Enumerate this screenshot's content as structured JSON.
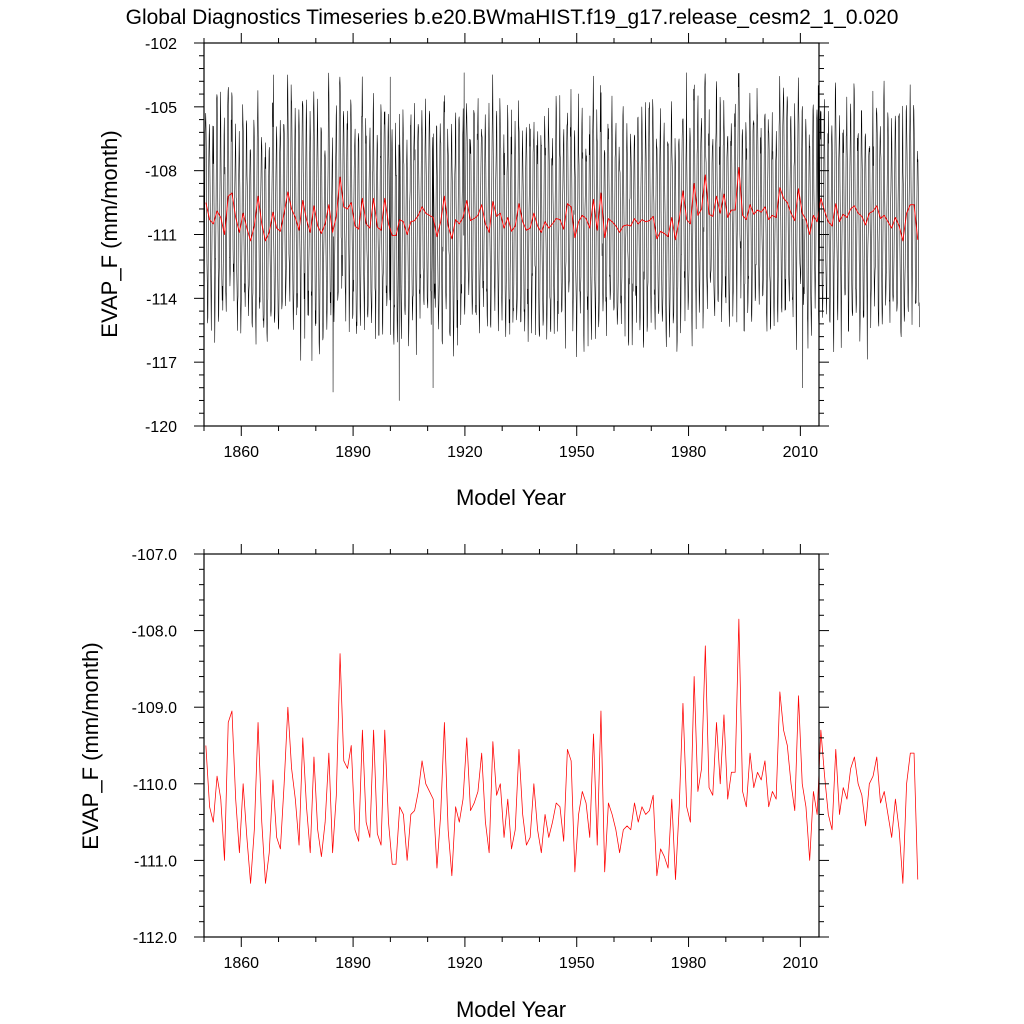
{
  "title": "Global Diagnostics Timeseries b.e20.BWmaHIST.f19_g17.release_cesm2_1_0.020",
  "chart_data": [
    {
      "type": "line",
      "xlabel": "Model Year",
      "ylabel": "EVAP_F (mm/month)",
      "xlim": [
        1850,
        2015
      ],
      "ylim": [
        -120,
        -102
      ],
      "xticks": [
        1860,
        1890,
        1920,
        1950,
        1980,
        2010
      ],
      "yticks": [
        -120,
        -117,
        -114,
        -111,
        -108,
        -105,
        -102
      ],
      "ytick_labels": [
        "-120",
        "-117",
        "-114",
        "-111",
        "-108",
        "-105",
        "-102"
      ],
      "series": [
        {
          "kind": "monthly",
          "color": "#000000",
          "description_range": [
            -118.7,
            -103.4
          ],
          "annual_cycle_amplitude": 5.0,
          "notable": [
            {
              "x": 1868.6,
              "y": -103.5
            },
            {
              "x": 1900.0,
              "y": -103.6
            },
            {
              "x": 1919.8,
              "y": -103.4
            },
            {
              "x": 1979.5,
              "y": -103.4
            },
            {
              "x": 2014.8,
              "y": -104.0
            },
            {
              "x": 1884.6,
              "y": -118.4
            },
            {
              "x": 1902.4,
              "y": -118.8
            },
            {
              "x": 1911.5,
              "y": -118.2
            },
            {
              "x": 2010.6,
              "y": -118.2
            }
          ]
        },
        {
          "kind": "annual",
          "color": "#ff0000",
          "ref": "annual_means"
        }
      ]
    },
    {
      "type": "line",
      "xlabel": "Model Year",
      "ylabel": "EVAP_F (mm/month)",
      "xlim": [
        1850,
        2015
      ],
      "ylim": [
        -112,
        -107
      ],
      "xticks": [
        1860,
        1890,
        1920,
        1950,
        1980,
        2010
      ],
      "yticks": [
        -112,
        -111,
        -110,
        -109,
        -108,
        -107
      ],
      "ytick_labels": [
        "-112.0",
        "-111.0",
        "-110.0",
        "-109.0",
        "-108.0",
        "-107.0"
      ],
      "series": [
        {
          "kind": "annual",
          "color": "#ff0000",
          "ref": "annual_means"
        }
      ]
    }
  ],
  "annual_means": {
    "x_start": 1850,
    "values": [
      -109.5,
      -110.3,
      -110.5,
      -109.9,
      -110.2,
      -111.0,
      -109.2,
      -109.05,
      -110.2,
      -110.9,
      -110.0,
      -110.7,
      -111.3,
      -110.6,
      -109.2,
      -110.5,
      -111.3,
      -110.9,
      -109.95,
      -110.7,
      -110.85,
      -110.0,
      -109.0,
      -109.8,
      -110.2,
      -110.8,
      -109.4,
      -110.3,
      -110.9,
      -109.65,
      -110.6,
      -110.95,
      -110.5,
      -109.6,
      -110.9,
      -110.15,
      -108.3,
      -109.7,
      -109.8,
      -109.5,
      -110.6,
      -110.75,
      -109.3,
      -110.5,
      -110.7,
      -109.3,
      -110.65,
      -110.8,
      -109.3,
      -110.5,
      -111.05,
      -111.05,
      -110.3,
      -110.4,
      -111.0,
      -110.4,
      -110.35,
      -110.1,
      -109.7,
      -110.0,
      -110.1,
      -110.2,
      -111.1,
      -110.4,
      -109.2,
      -110.6,
      -111.2,
      -110.3,
      -110.5,
      -110.2,
      -109.4,
      -110.35,
      -110.25,
      -110.1,
      -109.6,
      -110.5,
      -110.9,
      -109.45,
      -110.15,
      -110.0,
      -110.7,
      -110.2,
      -110.85,
      -110.6,
      -109.55,
      -110.4,
      -110.8,
      -110.7,
      -110.0,
      -110.6,
      -110.9,
      -110.4,
      -110.7,
      -110.5,
      -110.25,
      -110.3,
      -110.75,
      -109.55,
      -109.7,
      -111.15,
      -110.4,
      -110.1,
      -110.25,
      -110.7,
      -109.35,
      -110.8,
      -109.05,
      -111.15,
      -110.25,
      -110.4,
      -110.6,
      -110.9,
      -110.6,
      -110.55,
      -110.6,
      -110.25,
      -110.5,
      -110.3,
      -110.4,
      -110.35,
      -110.15,
      -111.2,
      -110.85,
      -110.95,
      -111.1,
      -110.2,
      -111.25,
      -110.3,
      -108.95,
      -110.3,
      -110.5,
      -108.6,
      -110.1,
      -109.8,
      -108.2,
      -110.05,
      -110.15,
      -109.2,
      -110.0,
      -109.1,
      -110.2,
      -109.85,
      -109.85,
      -107.85,
      -110.1,
      -110.3,
      -109.6,
      -110.05,
      -109.85,
      -109.95,
      -109.7,
      -110.3,
      -110.1,
      -110.2,
      -108.8,
      -109.3,
      -109.5,
      -110.0,
      -110.35,
      -108.85,
      -110.0,
      -110.3,
      -111.0,
      -110.1,
      -110.4,
      -109.3,
      -109.9,
      -110.4,
      -110.6,
      -109.55,
      -110.4,
      -110.05,
      -110.2,
      -109.8,
      -109.65,
      -110.0,
      -110.15,
      -110.55,
      -110.0,
      -109.9,
      -109.65,
      -110.25,
      -110.1,
      -110.4,
      -110.7,
      -110.2,
      -110.6,
      -111.3,
      -110.0,
      -109.6,
      -109.6,
      -111.25
    ]
  }
}
